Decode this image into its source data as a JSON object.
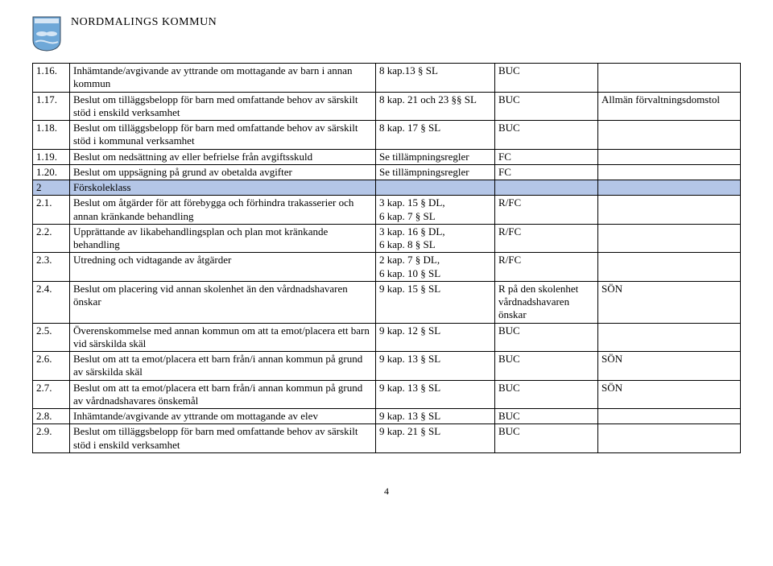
{
  "header": {
    "org_name": "NORDMALINGS KOMMUN"
  },
  "page_number": "4",
  "colors": {
    "section_bg": "#b4c6e7",
    "border": "#000000",
    "text": "#000000"
  },
  "rows": [
    {
      "num": "1.16.",
      "desc": "Inhämtande/avgivande av yttrande om mottagande av barn i annan kommun",
      "ref": "8 kap.13 § SL",
      "del": "BUC",
      "note": "",
      "section": false
    },
    {
      "num": "1.17.",
      "desc": "Beslut om tilläggsbelopp för barn med omfattande behov av särskilt stöd i enskild verksamhet",
      "ref": "8 kap. 21 och 23 §§ SL",
      "del": "BUC",
      "note": "Allmän förvaltningsdomstol",
      "section": false
    },
    {
      "num": "1.18.",
      "desc": "Beslut om tilläggsbelopp för barn med omfattande behov av särskilt stöd i kommunal verksamhet",
      "ref": "8 kap. 17 § SL",
      "del": "BUC",
      "note": "",
      "section": false
    },
    {
      "num": "1.19.",
      "desc": "Beslut om nedsättning av eller befrielse från avgiftsskuld",
      "ref": "Se tillämpningsregler",
      "del": "FC",
      "note": "",
      "section": false
    },
    {
      "num": "1.20.",
      "desc": "Beslut om uppsägning på grund av obetalda avgifter",
      "ref": "Se tillämpningsregler",
      "del": "FC",
      "note": "",
      "section": false
    },
    {
      "num": "2",
      "desc": "Förskoleklass",
      "ref": "",
      "del": "",
      "note": "",
      "section": true
    },
    {
      "num": "2.1.",
      "desc": "Beslut om åtgärder för att förebygga och förhindra trakasserier och annan kränkande behandling",
      "ref": "3 kap. 15 § DL,\n6 kap. 7 § SL",
      "del": "R/FC",
      "note": "",
      "section": false
    },
    {
      "num": "2.2.",
      "desc": "Upprättande av likabehandlingsplan och plan mot kränkande behandling",
      "ref": "3 kap. 16 § DL,\n6 kap. 8 § SL",
      "del": "R/FC",
      "note": "",
      "section": false
    },
    {
      "num": "2.3.",
      "desc": "Utredning och vidtagande av åtgärder",
      "ref": "2 kap. 7 § DL,\n6 kap. 10 § SL",
      "del": "R/FC",
      "note": "",
      "section": false
    },
    {
      "num": "2.4.",
      "desc": "Beslut om placering vid annan skolenhet än den vårdnadshavaren önskar",
      "ref": "9 kap. 15 § SL",
      "del": "R på den skolenhet vårdnadshavaren önskar",
      "note": "SÖN",
      "section": false
    },
    {
      "num": "2.5.",
      "desc": "Överenskommelse med annan kommun om att ta emot/placera ett barn vid särskilda skäl",
      "ref": "9 kap. 12 § SL",
      "del": "BUC",
      "note": "",
      "section": false
    },
    {
      "num": "2.6.",
      "desc": "Beslut om att ta emot/placera ett barn från/i annan kommun på grund av särskilda skäl",
      "ref": "9 kap. 13 § SL",
      "del": "BUC",
      "note": "SÖN",
      "section": false
    },
    {
      "num": "2.7.",
      "desc": "Beslut om att ta emot/placera ett barn från/i annan kommun på grund av vårdnadshavares önskemål",
      "ref": "9 kap. 13 § SL",
      "del": "BUC",
      "note": "SÖN",
      "section": false
    },
    {
      "num": "2.8.",
      "desc": "Inhämtande/avgivande av yttrande om mottagande av elev",
      "ref": "9 kap. 13 § SL",
      "del": "BUC",
      "note": "",
      "section": false
    },
    {
      "num": "2.9.",
      "desc": "Beslut om tilläggsbelopp för barn med omfattande behov av särskilt stöd i enskild verksamhet",
      "ref": "9 kap. 21 § SL",
      "del": "BUC",
      "note": "",
      "section": false
    }
  ]
}
